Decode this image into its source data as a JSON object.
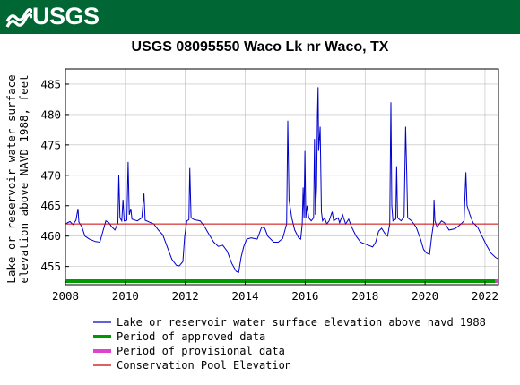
{
  "banner": {
    "logo_text": "USGS"
  },
  "chart_data": {
    "type": "line",
    "title": "USGS 08095550 Waco Lk nr Waco, TX",
    "ylabel": "Lake or reservoir water surface\nelevation above NAVD 1988, feet",
    "xlabel": "",
    "xlim": [
      2008.0,
      2022.45
    ],
    "ylim": [
      452.0,
      487.5
    ],
    "x_ticks": [
      "2008",
      "2010",
      "2012",
      "2014",
      "2016",
      "2018",
      "2020",
      "2022"
    ],
    "y_ticks": [
      "455",
      "460",
      "465",
      "470",
      "475",
      "480",
      "485"
    ],
    "grid": true,
    "colors": {
      "series": "#0000cc",
      "approved": "#009900",
      "provisional": "#dd44cc",
      "conservation": "#cc0000",
      "banner": "#006633",
      "grid": "#bbbbbb"
    },
    "series": [
      {
        "name": "Lake or reservoir water surface elevation above navd 1988",
        "points": [
          [
            2008.0,
            462.0
          ],
          [
            2008.15,
            462.4
          ],
          [
            2008.25,
            461.9
          ],
          [
            2008.35,
            462.6
          ],
          [
            2008.42,
            464.5
          ],
          [
            2008.45,
            462.3
          ],
          [
            2008.55,
            461.5
          ],
          [
            2008.65,
            460.0
          ],
          [
            2008.8,
            459.5
          ],
          [
            2009.0,
            459.1
          ],
          [
            2009.15,
            459.0
          ],
          [
            2009.25,
            460.8
          ],
          [
            2009.35,
            462.5
          ],
          [
            2009.45,
            462.2
          ],
          [
            2009.55,
            461.5
          ],
          [
            2009.65,
            461.0
          ],
          [
            2009.75,
            462.2
          ],
          [
            2009.78,
            470.0
          ],
          [
            2009.82,
            463.0
          ],
          [
            2009.88,
            462.5
          ],
          [
            2009.92,
            466.0
          ],
          [
            2009.96,
            462.5
          ],
          [
            2010.05,
            462.6
          ],
          [
            2010.09,
            472.2
          ],
          [
            2010.13,
            463.5
          ],
          [
            2010.18,
            464.5
          ],
          [
            2010.22,
            462.8
          ],
          [
            2010.4,
            462.5
          ],
          [
            2010.55,
            463.0
          ],
          [
            2010.62,
            467.0
          ],
          [
            2010.66,
            462.6
          ],
          [
            2010.8,
            462.3
          ],
          [
            2010.95,
            462.0
          ],
          [
            2011.1,
            461.0
          ],
          [
            2011.25,
            460.2
          ],
          [
            2011.4,
            458.2
          ],
          [
            2011.55,
            456.2
          ],
          [
            2011.7,
            455.2
          ],
          [
            2011.8,
            455.1
          ],
          [
            2011.92,
            455.8
          ],
          [
            2011.98,
            460.0
          ],
          [
            2012.05,
            462.5
          ],
          [
            2012.12,
            462.7
          ],
          [
            2012.15,
            471.2
          ],
          [
            2012.19,
            463.0
          ],
          [
            2012.3,
            462.7
          ],
          [
            2012.5,
            462.5
          ],
          [
            2012.65,
            461.5
          ],
          [
            2012.8,
            460.2
          ],
          [
            2012.95,
            459.0
          ],
          [
            2013.1,
            458.3
          ],
          [
            2013.25,
            458.5
          ],
          [
            2013.4,
            457.5
          ],
          [
            2013.55,
            455.5
          ],
          [
            2013.7,
            454.2
          ],
          [
            2013.78,
            454.0
          ],
          [
            2013.86,
            456.5
          ],
          [
            2013.95,
            458.3
          ],
          [
            2014.05,
            459.5
          ],
          [
            2014.2,
            459.7
          ],
          [
            2014.4,
            459.5
          ],
          [
            2014.55,
            461.5
          ],
          [
            2014.65,
            461.3
          ],
          [
            2014.75,
            460.0
          ],
          [
            2014.95,
            459.0
          ],
          [
            2015.1,
            459.0
          ],
          [
            2015.25,
            459.6
          ],
          [
            2015.38,
            462.0
          ],
          [
            2015.42,
            479.0
          ],
          [
            2015.46,
            466.0
          ],
          [
            2015.55,
            463.0
          ],
          [
            2015.65,
            461.0
          ],
          [
            2015.78,
            459.7
          ],
          [
            2015.85,
            459.5
          ],
          [
            2015.9,
            462.0
          ],
          [
            2015.93,
            468.0
          ],
          [
            2015.96,
            463.0
          ],
          [
            2015.99,
            474.0
          ],
          [
            2016.02,
            463.0
          ],
          [
            2016.06,
            465.0
          ],
          [
            2016.12,
            463.0
          ],
          [
            2016.2,
            462.5
          ],
          [
            2016.28,
            463.0
          ],
          [
            2016.31,
            476.0
          ],
          [
            2016.34,
            463.5
          ],
          [
            2016.38,
            468.0
          ],
          [
            2016.41,
            480.0
          ],
          [
            2016.43,
            484.5
          ],
          [
            2016.45,
            474.0
          ],
          [
            2016.5,
            478.0
          ],
          [
            2016.54,
            464.0
          ],
          [
            2016.58,
            462.5
          ],
          [
            2016.65,
            463.0
          ],
          [
            2016.72,
            462.0
          ],
          [
            2016.8,
            462.5
          ],
          [
            2016.9,
            464.0
          ],
          [
            2016.95,
            462.5
          ],
          [
            2017.1,
            463.0
          ],
          [
            2017.15,
            462.2
          ],
          [
            2017.25,
            463.5
          ],
          [
            2017.35,
            462.0
          ],
          [
            2017.45,
            462.8
          ],
          [
            2017.55,
            461.5
          ],
          [
            2017.7,
            460.0
          ],
          [
            2017.85,
            459.0
          ],
          [
            2018.05,
            458.6
          ],
          [
            2018.25,
            458.2
          ],
          [
            2018.35,
            459.0
          ],
          [
            2018.45,
            460.8
          ],
          [
            2018.55,
            461.3
          ],
          [
            2018.65,
            460.5
          ],
          [
            2018.75,
            460.0
          ],
          [
            2018.82,
            462.0
          ],
          [
            2018.86,
            482.0
          ],
          [
            2018.89,
            465.0
          ],
          [
            2018.93,
            462.5
          ],
          [
            2019.02,
            462.8
          ],
          [
            2019.05,
            471.5
          ],
          [
            2019.08,
            463.0
          ],
          [
            2019.2,
            462.5
          ],
          [
            2019.3,
            463.2
          ],
          [
            2019.35,
            478.0
          ],
          [
            2019.39,
            470.0
          ],
          [
            2019.42,
            463.0
          ],
          [
            2019.55,
            462.5
          ],
          [
            2019.7,
            461.5
          ],
          [
            2019.85,
            459.5
          ],
          [
            2019.95,
            457.8
          ],
          [
            2020.05,
            457.2
          ],
          [
            2020.15,
            457.0
          ],
          [
            2020.22,
            460.0
          ],
          [
            2020.28,
            462.0
          ],
          [
            2020.3,
            466.0
          ],
          [
            2020.33,
            462.5
          ],
          [
            2020.4,
            461.5
          ],
          [
            2020.55,
            462.5
          ],
          [
            2020.65,
            462.2
          ],
          [
            2020.8,
            461.0
          ],
          [
            2021.0,
            461.2
          ],
          [
            2021.2,
            462.0
          ],
          [
            2021.3,
            462.5
          ],
          [
            2021.36,
            470.5
          ],
          [
            2021.4,
            465.0
          ],
          [
            2021.5,
            463.5
          ],
          [
            2021.6,
            462.2
          ],
          [
            2021.75,
            461.5
          ],
          [
            2021.9,
            460.0
          ],
          [
            2022.05,
            458.5
          ],
          [
            2022.2,
            457.2
          ],
          [
            2022.35,
            456.5
          ],
          [
            2022.45,
            456.2
          ]
        ]
      },
      {
        "name": "Period of approved data",
        "x_range": [
          2008.0,
          2022.35
        ]
      },
      {
        "name": "Period of provisional data",
        "x_range": [
          2022.35,
          2022.45
        ]
      },
      {
        "name": "Conservation Pool Elevation",
        "y": 462.0
      }
    ],
    "legend": [
      {
        "label": "Lake or reservoir water surface elevation above navd 1988",
        "kind": "thin-line",
        "color": "#0000cc"
      },
      {
        "label": "Period of approved data",
        "kind": "thick-line",
        "color": "#009900"
      },
      {
        "label": "Period of provisional data",
        "kind": "thick-line",
        "color": "#dd44cc"
      },
      {
        "label": "Conservation Pool Elevation",
        "kind": "thin-line",
        "color": "#cc0000"
      }
    ],
    "legend_position": "bottom"
  }
}
